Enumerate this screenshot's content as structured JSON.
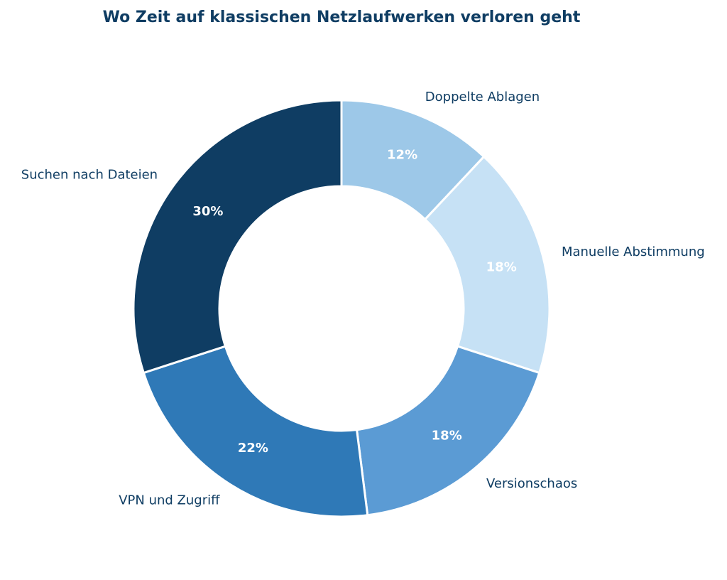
{
  "chart_data": {
    "type": "pie",
    "variant": "donut",
    "title": "Wo Zeit auf klassischen Netzlaufwerken verloren geht",
    "slices": [
      {
        "label": "Doppelte Ablagen",
        "value": 12,
        "value_label": "12%",
        "color": "#9dc8e8"
      },
      {
        "label": "Manuelle Abstimmung",
        "value": 18,
        "value_label": "18%",
        "color": "#c6e1f5"
      },
      {
        "label": "Versionschaos",
        "value": 18,
        "value_label": "18%",
        "color": "#5b9bd4"
      },
      {
        "label": "VPN und Zugriff",
        "value": 22,
        "value_label": "22%",
        "color": "#2f79b7"
      },
      {
        "label": "Suchen nach Dateien",
        "value": 30,
        "value_label": "30%",
        "color": "#0f3d63"
      }
    ],
    "start_angle": "12 o'clock",
    "direction": "clockwise",
    "legend": "none"
  },
  "colors": {
    "title": "#0f3d63",
    "labels": "#0f3d63",
    "value_labels": "#ffffff",
    "separator": "#ffffff"
  }
}
